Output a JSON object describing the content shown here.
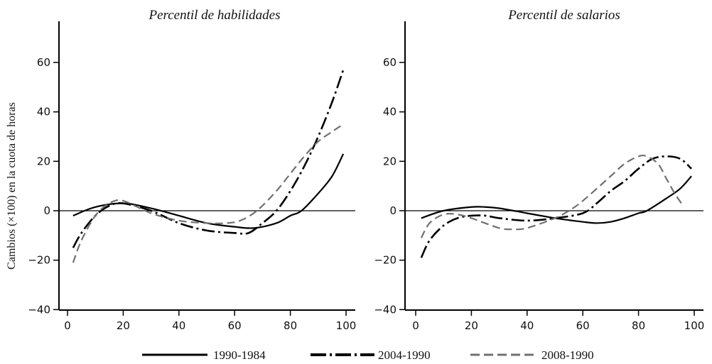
{
  "chart_data": [
    {
      "type": "line",
      "title": "Percentil de habilidades",
      "xlabel": "",
      "ylabel": "Cambios (×100) en la cuota de horas",
      "xlim": [
        0,
        100
      ],
      "ylim": [
        -40,
        76
      ],
      "xticks": [
        "0",
        "20",
        "40",
        "60",
        "80",
        "100"
      ],
      "yticks": [
        "−40",
        "−20",
        "0",
        "20",
        "40",
        "60"
      ],
      "series": [
        {
          "name": "1990-1984",
          "x": [
            2,
            10,
            20,
            30,
            40,
            50,
            60,
            67,
            75,
            80,
            84,
            90,
            95,
            99
          ],
          "y": [
            -2,
            1.5,
            3,
            1,
            -2,
            -5,
            -6.5,
            -7,
            -5,
            -2,
            0,
            7,
            14,
            23
          ]
        },
        {
          "name": "2004-1990",
          "x": [
            2,
            5,
            10,
            15,
            20,
            30,
            40,
            50,
            60,
            65,
            70,
            75,
            80,
            85,
            90,
            95,
            99
          ],
          "y": [
            -15,
            -9,
            -2,
            2,
            3,
            0,
            -5,
            -8,
            -9,
            -9,
            -5,
            0,
            8,
            18,
            30,
            44,
            57
          ]
        },
        {
          "name": "2008-1990",
          "x": [
            2,
            5,
            10,
            15,
            20,
            30,
            40,
            50,
            57,
            62,
            68,
            75,
            80,
            85,
            90,
            95,
            99
          ],
          "y": [
            -21,
            -12,
            -2,
            3,
            4,
            -1,
            -4,
            -5,
            -5,
            -4,
            0,
            8,
            15,
            22,
            28,
            32,
            35
          ]
        }
      ]
    },
    {
      "type": "line",
      "title": "Percentil de salarios",
      "xlabel": "",
      "ylabel": "",
      "xlim": [
        0,
        100
      ],
      "ylim": [
        -40,
        76
      ],
      "xticks": [
        "0",
        "20",
        "40",
        "60",
        "80",
        "100"
      ],
      "yticks": [
        "−40",
        "−20",
        "0",
        "20",
        "40",
        "60"
      ],
      "series": [
        {
          "name": "1990-1984",
          "x": [
            2,
            10,
            20,
            25,
            30,
            40,
            50,
            60,
            65,
            70,
            75,
            80,
            83,
            90,
            95,
            99
          ],
          "y": [
            -3,
            0,
            1.5,
            1.5,
            1,
            -1,
            -3,
            -4.5,
            -5,
            -4.5,
            -3,
            -1,
            0,
            5,
            9,
            14
          ]
        },
        {
          "name": "2004-1990",
          "x": [
            2,
            5,
            10,
            15,
            20,
            25,
            30,
            40,
            50,
            60,
            65,
            70,
            75,
            80,
            85,
            90,
            95,
            99
          ],
          "y": [
            -19,
            -12,
            -6,
            -3,
            -2,
            -2,
            -3,
            -4,
            -3,
            -1,
            3,
            8,
            12,
            17,
            21,
            22,
            21,
            17
          ]
        },
        {
          "name": "2008-1990",
          "x": [
            2,
            5,
            10,
            15,
            20,
            30,
            35,
            40,
            50,
            55,
            60,
            70,
            75,
            80,
            83,
            87,
            90,
            93,
            96
          ],
          "y": [
            -11,
            -5,
            -1.5,
            -1.5,
            -3,
            -7,
            -7.5,
            -7,
            -3,
            0,
            4,
            14,
            19,
            22,
            22,
            19,
            13,
            7,
            2
          ]
        }
      ]
    }
  ],
  "legend": {
    "placement": "bottom",
    "items": [
      {
        "label": "1990-1984",
        "color": "#000000",
        "style": "solid"
      },
      {
        "label": "2004-1990",
        "color": "#000000",
        "style": "dash-dot"
      },
      {
        "label": "2008-1990",
        "color": "#707070",
        "style": "dashed"
      }
    ]
  }
}
